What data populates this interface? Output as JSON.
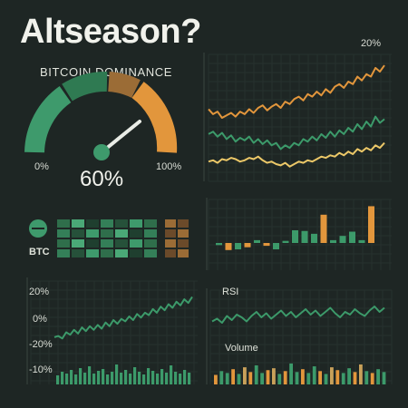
{
  "title": "Altseason?",
  "dominance": {
    "label": "BITCOIN DOMINANCE",
    "min_label": "0%",
    "max_label": "100%",
    "value_label": "60%",
    "value": 60
  },
  "top_chart": {
    "axis_label": "20%"
  },
  "heatmap": {
    "label": "BTC"
  },
  "bottom_left": {
    "ticks": [
      "20%",
      "0%",
      "-20%",
      "-10%"
    ]
  },
  "rsi": {
    "label": "RSI"
  },
  "volume": {
    "label": "Volume"
  },
  "colors": {
    "background": "#1e2624",
    "green": "#3c9a6a",
    "orange": "#e2963c",
    "yellow": "#ecc868",
    "brown": "#9b6c36"
  },
  "chart_data": [
    {
      "type": "line",
      "title": "",
      "series": [
        {
          "values": [
            62,
            58,
            60,
            55,
            57,
            59,
            56,
            60,
            58,
            62,
            59,
            63,
            65,
            61,
            64,
            66,
            63,
            68,
            66,
            70,
            72,
            69,
            74,
            72,
            76,
            73,
            78,
            75,
            80,
            82,
            79,
            84,
            82,
            88,
            85,
            90,
            88,
            95,
            92,
            97
          ]
        },
        {
          "values": [
            42,
            44,
            40,
            43,
            38,
            41,
            36,
            39,
            37,
            40,
            35,
            38,
            34,
            37,
            33,
            35,
            30,
            33,
            31,
            35,
            33,
            38,
            36,
            40,
            37,
            42,
            39,
            44,
            40,
            45,
            42,
            47,
            44,
            50,
            46,
            52,
            48,
            56,
            51,
            54
          ]
        },
        {
          "values": [
            20,
            21,
            19,
            22,
            21,
            23,
            22,
            20,
            21,
            23,
            22,
            24,
            21,
            19,
            20,
            18,
            17,
            19,
            16,
            18,
            20,
            19,
            21,
            20,
            22,
            24,
            23,
            25,
            24,
            27,
            25,
            28,
            26,
            30,
            28,
            31,
            29,
            33,
            31,
            35
          ]
        }
      ]
    },
    {
      "type": "bar",
      "values": [
        -3,
        -10,
        -9,
        -6,
        4,
        -4,
        -9,
        3,
        18,
        17,
        13,
        40,
        4,
        10,
        16,
        4,
        52
      ]
    },
    {
      "type": "line",
      "yticks": [
        "20%",
        "0%",
        "-20%"
      ],
      "series": [
        {
          "values": [
            -12,
            -11,
            -13,
            -8,
            -10,
            -6,
            -9,
            -4,
            -7,
            -3,
            -6,
            -2,
            -5,
            0,
            -3,
            2,
            -1,
            3,
            1,
            5,
            2,
            7,
            4,
            8,
            6,
            11,
            8,
            13,
            10,
            15,
            12,
            17,
            14,
            19,
            16,
            21
          ]
        }
      ]
    },
    {
      "type": "line",
      "title": "RSI",
      "series": [
        {
          "values": [
            45,
            47,
            44,
            49,
            46,
            50,
            48,
            45,
            49,
            52,
            48,
            51,
            47,
            50,
            53,
            49,
            52,
            48,
            51,
            54,
            50,
            53,
            49,
            52,
            55,
            51,
            48,
            52,
            50,
            54,
            51,
            49,
            53,
            56,
            52,
            55
          ]
        }
      ]
    },
    {
      "type": "bar",
      "title": "Volume",
      "series": [
        {
          "name": "",
          "values": [
            10,
            14,
            12,
            16,
            11,
            18,
            13,
            20,
            12,
            15,
            17,
            11,
            14,
            22,
            13,
            16,
            12,
            19,
            14,
            11,
            18,
            15,
            12,
            17,
            13,
            21,
            14,
            12,
            16,
            13
          ]
        }
      ]
    }
  ]
}
